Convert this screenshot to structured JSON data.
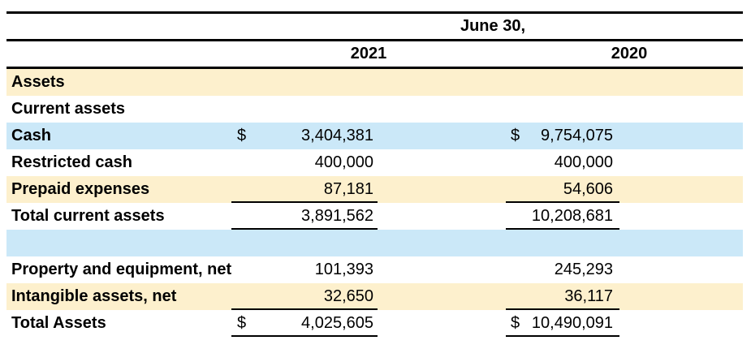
{
  "document": {
    "date_header": "June 30,",
    "columns": [
      "2021",
      "2020"
    ],
    "colors": {
      "highlight_cream": "#fdf0cd",
      "highlight_blue": "#cbe8f8",
      "rule_black": "#000000"
    },
    "rows": [
      {
        "label": "Assets"
      },
      {
        "label": "Current assets"
      },
      {
        "label": "Cash",
        "cur_2021": "$",
        "val_2021": "3,404,381",
        "cur_2020": "$",
        "val_2020": "9,754,075"
      },
      {
        "label": "Restricted cash",
        "val_2021": "400,000",
        "val_2020": "400,000"
      },
      {
        "label": "Prepaid expenses",
        "val_2021": "87,181",
        "val_2020": "54,606"
      },
      {
        "label": "Total current assets",
        "val_2021": "3,891,562",
        "val_2020": "10,208,681"
      },
      {
        "label": ""
      },
      {
        "label": "Property and equipment, net",
        "val_2021": "101,393",
        "val_2020": "245,293"
      },
      {
        "label": "Intangible assets, net",
        "val_2021": "32,650",
        "val_2020": "36,117"
      },
      {
        "label": "Total Assets",
        "cur_2021": "$",
        "val_2021": "4,025,605",
        "cur_2020": "$",
        "val_2020": "10,490,091"
      }
    ]
  }
}
